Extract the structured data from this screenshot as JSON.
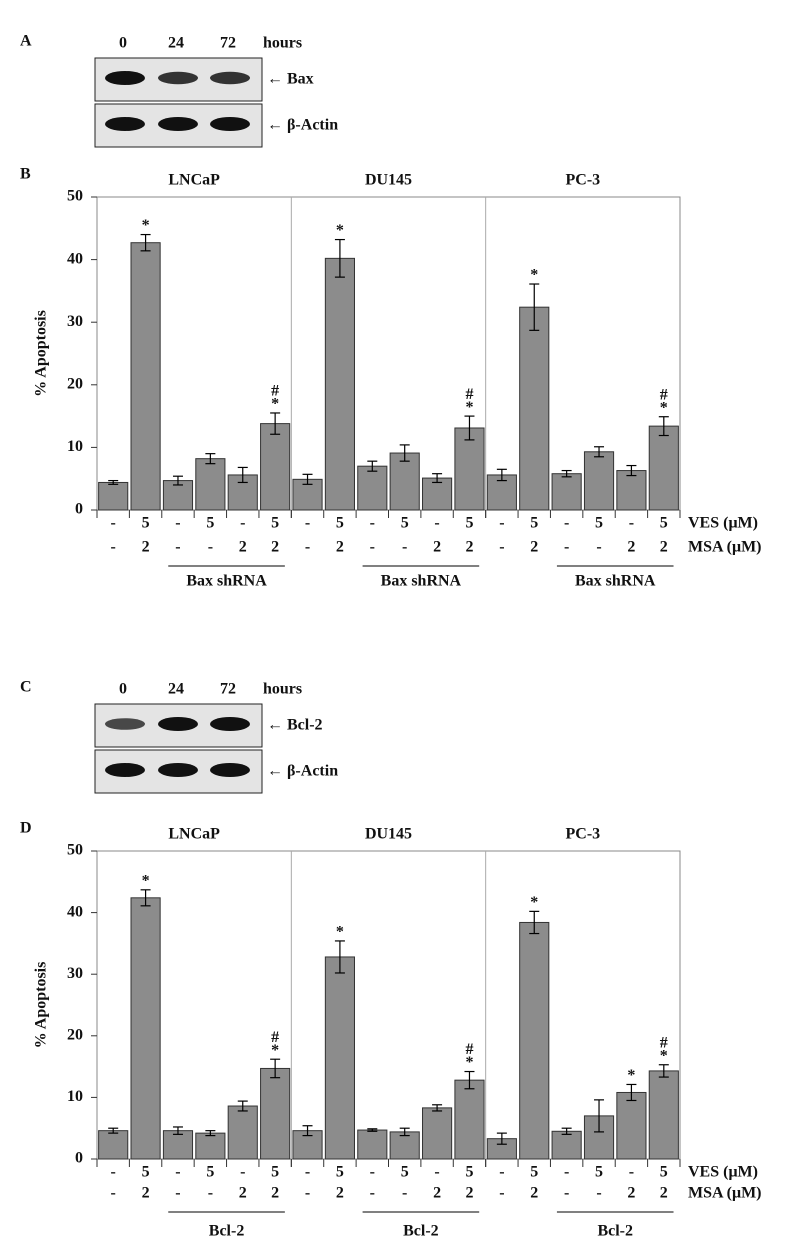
{
  "blots": [
    {
      "letter": "A",
      "lanes": [
        "0",
        "24",
        "72"
      ],
      "unit": "hours",
      "bands": [
        "← Bax",
        "← β-Actin"
      ]
    },
    {
      "letter": "C",
      "lanes": [
        "0",
        "24",
        "72"
      ],
      "unit": "hours",
      "bands": [
        "← Bcl-2",
        "← β-Actin"
      ]
    }
  ],
  "chart_data": [
    {
      "type": "bar",
      "letter": "B",
      "ylabel": "% Apoptosis",
      "ylim": [
        0,
        50
      ],
      "yticks": [
        0,
        10,
        20,
        30,
        40,
        50
      ],
      "color": "#8c8c8c",
      "bracket_label": "Bax shRNA",
      "conditions": [
        {
          "label": "VES (μM)",
          "values": [
            "-",
            "5",
            "-",
            "5",
            "-",
            "5"
          ]
        },
        {
          "label": "MSA (μM)",
          "values": [
            "-",
            "2",
            "-",
            "-",
            "2",
            "2"
          ]
        }
      ],
      "groups": [
        {
          "name": "LNCaP",
          "values": [
            4.4,
            42.7,
            4.7,
            8.2,
            5.6,
            13.8
          ],
          "errors": [
            0.3,
            1.3,
            0.7,
            0.8,
            1.2,
            1.7
          ],
          "markers": [
            [],
            [
              "*"
            ],
            [],
            [],
            [],
            [
              "#",
              "*"
            ]
          ]
        },
        {
          "name": "DU145",
          "values": [
            4.9,
            40.2,
            7.0,
            9.1,
            5.1,
            13.1
          ],
          "errors": [
            0.8,
            3.0,
            0.8,
            1.3,
            0.7,
            1.9
          ],
          "markers": [
            [],
            [
              "*"
            ],
            [],
            [],
            [],
            [
              "#",
              "*"
            ]
          ]
        },
        {
          "name": "PC-3",
          "values": [
            5.6,
            32.4,
            5.8,
            9.3,
            6.3,
            13.4
          ],
          "errors": [
            0.9,
            3.7,
            0.5,
            0.8,
            0.8,
            1.5
          ],
          "markers": [
            [],
            [
              "*"
            ],
            [],
            [],
            [],
            [
              "#",
              "*"
            ]
          ]
        }
      ]
    },
    {
      "type": "bar",
      "letter": "D",
      "ylabel": "% Apoptosis",
      "ylim": [
        0,
        50
      ],
      "yticks": [
        0,
        10,
        20,
        30,
        40,
        50
      ],
      "color": "#8c8c8c",
      "bracket_label": "Bcl-2",
      "conditions": [
        {
          "label": "VES (μM)",
          "values": [
            "-",
            "5",
            "-",
            "5",
            "-",
            "5"
          ]
        },
        {
          "label": "MSA (μM)",
          "values": [
            "-",
            "2",
            "-",
            "-",
            "2",
            "2"
          ]
        }
      ],
      "groups": [
        {
          "name": "LNCaP",
          "values": [
            4.6,
            42.4,
            4.6,
            4.2,
            8.6,
            14.7
          ],
          "errors": [
            0.4,
            1.3,
            0.6,
            0.4,
            0.8,
            1.5
          ],
          "markers": [
            [],
            [
              "*"
            ],
            [],
            [],
            [],
            [
              "#",
              "*"
            ]
          ]
        },
        {
          "name": "DU145",
          "values": [
            4.6,
            32.8,
            4.7,
            4.4,
            8.3,
            12.8
          ],
          "errors": [
            0.8,
            2.6,
            0.2,
            0.6,
            0.5,
            1.4
          ],
          "markers": [
            [],
            [
              "*"
            ],
            [],
            [],
            [],
            [
              "#",
              "*"
            ]
          ]
        },
        {
          "name": "PC-3",
          "values": [
            3.3,
            38.4,
            4.5,
            7.0,
            10.8,
            14.3
          ],
          "errors": [
            0.9,
            1.8,
            0.5,
            2.6,
            1.3,
            1.0
          ],
          "markers": [
            [],
            [
              "*"
            ],
            [],
            [],
            [
              "*"
            ],
            [
              "#",
              "*"
            ]
          ]
        }
      ]
    }
  ]
}
